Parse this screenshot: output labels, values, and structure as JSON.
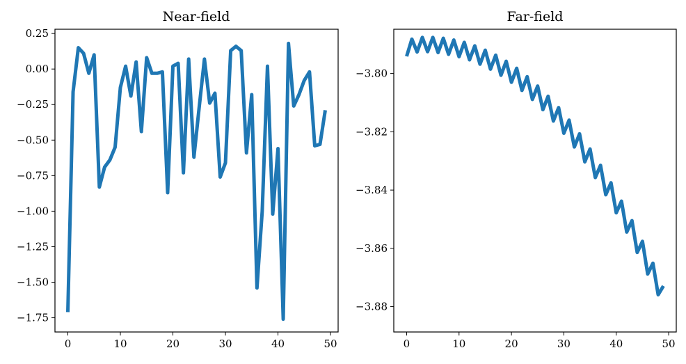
{
  "chart_data": [
    {
      "type": "line",
      "title": "Near-field",
      "xlabel": "",
      "ylabel": "",
      "xlim": [
        -2.45,
        51.45
      ],
      "ylim": [
        -1.85,
        0.28
      ],
      "xticks": [
        0,
        10,
        20,
        30,
        40,
        50
      ],
      "xtick_labels": [
        "0",
        "10",
        "20",
        "30",
        "40",
        "50"
      ],
      "yticks": [
        0.25,
        0.0,
        -0.25,
        -0.5,
        -0.75,
        -1.0,
        -1.25,
        -1.5,
        -1.75
      ],
      "ytick_labels": [
        "0.25",
        "0.00",
        "−0.25",
        "−0.50",
        "−0.75",
        "−1.00",
        "−1.25",
        "−1.50",
        "−1.75"
      ],
      "grid": false,
      "series": [
        {
          "name": "near-field",
          "color": "#1f77b4",
          "x": [
            0,
            1,
            2,
            3,
            4,
            5,
            6,
            7,
            8,
            9,
            10,
            11,
            12,
            13,
            14,
            15,
            16,
            17,
            18,
            19,
            20,
            21,
            22,
            23,
            24,
            25,
            26,
            27,
            28,
            29,
            30,
            31,
            32,
            33,
            34,
            35,
            36,
            37,
            38,
            39,
            40,
            41,
            42,
            43,
            44,
            45,
            46,
            47,
            48,
            49
          ],
          "values": [
            -1.71,
            -0.16,
            0.15,
            0.11,
            -0.03,
            0.1,
            -0.83,
            -0.69,
            -0.64,
            -0.55,
            -0.13,
            0.02,
            -0.19,
            0.05,
            -0.44,
            0.08,
            -0.03,
            -0.03,
            -0.02,
            -0.87,
            0.02,
            0.04,
            -0.73,
            0.07,
            -0.62,
            -0.27,
            0.07,
            -0.24,
            -0.17,
            -0.76,
            -0.66,
            0.13,
            0.16,
            0.13,
            -0.59,
            -0.18,
            -1.54,
            -1.0,
            0.02,
            -1.02,
            -0.56,
            -1.76,
            0.18,
            -0.26,
            -0.18,
            -0.08,
            -0.02,
            -0.54,
            -0.53,
            -0.29
          ]
        }
      ]
    },
    {
      "type": "line",
      "title": "Far-field",
      "xlabel": "",
      "ylabel": "",
      "xlim": [
        -2.45,
        51.45
      ],
      "ylim": [
        -3.8887,
        -3.7848
      ],
      "xticks": [
        0,
        10,
        20,
        30,
        40,
        50
      ],
      "xtick_labels": [
        "0",
        "10",
        "20",
        "30",
        "40",
        "50"
      ],
      "yticks": [
        -3.8,
        -3.82,
        -3.84,
        -3.86,
        -3.88
      ],
      "ytick_labels": [
        "−3.80",
        "−3.82",
        "−3.84",
        "−3.86",
        "−3.88"
      ],
      "grid": false,
      "series": [
        {
          "name": "far-field",
          "color": "#1f77b4",
          "x": [
            0,
            1,
            2,
            3,
            4,
            5,
            6,
            7,
            8,
            9,
            10,
            11,
            12,
            13,
            14,
            15,
            16,
            17,
            18,
            19,
            20,
            21,
            22,
            23,
            24,
            25,
            26,
            27,
            28,
            29,
            30,
            31,
            32,
            33,
            34,
            35,
            36,
            37,
            38,
            39,
            40,
            41,
            42,
            43,
            44,
            45,
            46,
            47,
            48,
            49
          ],
          "values": [
            -3.7941,
            -3.7882,
            -3.7926,
            -3.7876,
            -3.7925,
            -3.7876,
            -3.7928,
            -3.7879,
            -3.7934,
            -3.7885,
            -3.7942,
            -3.7893,
            -3.7953,
            -3.7905,
            -3.7968,
            -3.792,
            -3.7985,
            -3.7937,
            -3.8006,
            -3.7958,
            -3.803,
            -3.7982,
            -3.8058,
            -3.8011,
            -3.8089,
            -3.8043,
            -3.8124,
            -3.8078,
            -3.8163,
            -3.8117,
            -3.8205,
            -3.816,
            -3.8252,
            -3.8207,
            -3.8303,
            -3.8259,
            -3.8357,
            -3.8315,
            -3.8416,
            -3.8375,
            -3.8478,
            -3.8438,
            -3.8544,
            -3.8505,
            -3.8614,
            -3.8576,
            -3.8688,
            -3.8651,
            -3.8759,
            -3.8729
          ]
        }
      ]
    }
  ]
}
